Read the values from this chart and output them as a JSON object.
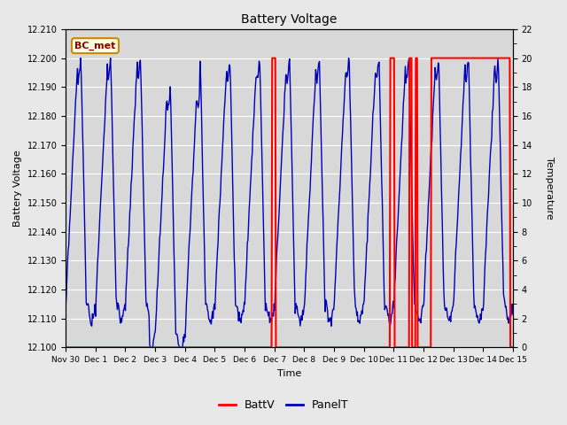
{
  "title": "Battery Voltage",
  "xlabel": "Time",
  "ylabel_left": "Battery Voltage",
  "ylabel_right": "Temperature",
  "annotation_text": "BC_met",
  "xlim": [
    0,
    15
  ],
  "ylim_left": [
    12.1,
    12.21
  ],
  "ylim_right": [
    0,
    22
  ],
  "yticks_left": [
    12.1,
    12.11,
    12.12,
    12.13,
    12.14,
    12.15,
    12.16,
    12.17,
    12.18,
    12.19,
    12.2,
    12.21
  ],
  "yticks_right": [
    0,
    2,
    4,
    6,
    8,
    10,
    12,
    14,
    16,
    18,
    20,
    22
  ],
  "xtick_positions": [
    0,
    1,
    2,
    3,
    4,
    5,
    6,
    7,
    8,
    9,
    10,
    11,
    12,
    13,
    14,
    15
  ],
  "xtick_labels": [
    "Nov 30",
    "Dec 1",
    "Dec 2",
    "Dec 3",
    "Dec 4",
    "Dec 5",
    "Dec 6",
    "Dec 7",
    "Dec 8",
    "Dec 9",
    "Dec 10",
    "Dec 11",
    "Dec 12",
    "Dec 13",
    "Dec 14",
    "Dec 15"
  ],
  "fig_bg_color": "#e8e8e8",
  "plot_bg_color": "#d8d8d8",
  "grid_color": "#ffffff",
  "battv_color": "#ff0000",
  "panelt_color": "#0000bb",
  "legend_battv": "BattV",
  "legend_panelt": "PanelT",
  "battv_pulses": [
    [
      6.92,
      7.05
    ],
    [
      10.87,
      11.02
    ],
    [
      11.52,
      11.6
    ],
    [
      11.73,
      11.8
    ],
    [
      12.25,
      14.9
    ]
  ]
}
